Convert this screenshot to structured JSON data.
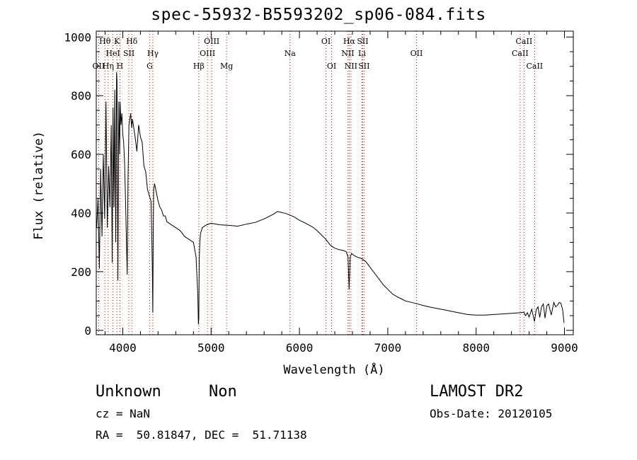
{
  "title": "spec-55932-B5593202_sp06-084.fits",
  "footer": {
    "class_label": "Unknown",
    "subclass_label": "Non",
    "cz_label": "cz = NaN",
    "coords_label": "RA =  50.81847, DEC =  51.71138",
    "survey_label": "LAMOST DR2",
    "obsdate_label": "Obs-Date: 20120105"
  },
  "chart_data": {
    "type": "line",
    "title": "spec-55932-B5593202_sp06-084.fits",
    "xlabel": "Wavelength (Å)",
    "ylabel": "Flux (relative)",
    "xlim": [
      3700,
      9100
    ],
    "ylim": [
      -15,
      1020
    ],
    "xticks": [
      4000,
      5000,
      6000,
      7000,
      8000,
      9000
    ],
    "yticks": [
      0,
      200,
      400,
      600,
      800,
      1000
    ],
    "grid": false,
    "line_color": "#000000",
    "marker_color": "#cc0000",
    "series": [
      {
        "x": [
          3705,
          3720,
          3735,
          3750,
          3765,
          3780,
          3795,
          3810,
          3825,
          3840,
          3855,
          3870,
          3880,
          3890,
          3900,
          3910,
          3920,
          3930,
          3935,
          3945,
          3955,
          3965,
          3970,
          3980,
          3990,
          4000,
          4010,
          4020,
          4030,
          4040,
          4050,
          4060,
          4070,
          4080,
          4090,
          4101,
          4110,
          4120,
          4140,
          4160,
          4180,
          4200,
          4220,
          4240,
          4260,
          4280,
          4300,
          4320,
          4330,
          4335,
          4340,
          4345,
          4350,
          4360,
          4380,
          4400,
          4420,
          4440,
          4460,
          4480,
          4500,
          4550,
          4600,
          4650,
          4700,
          4750,
          4800,
          4830,
          4850,
          4856,
          4861,
          4866,
          4872,
          4880,
          4900,
          4950,
          5000,
          5100,
          5200,
          5300,
          5400,
          5500,
          5600,
          5700,
          5750,
          5800,
          5850,
          5900,
          5950,
          6000,
          6050,
          6100,
          6150,
          6200,
          6250,
          6300,
          6350,
          6400,
          6450,
          6500,
          6530,
          6550,
          6563,
          6575,
          6590,
          6620,
          6650,
          6700,
          6750,
          6800,
          6850,
          6900,
          6950,
          7000,
          7050,
          7100,
          7150,
          7200,
          7300,
          7400,
          7500,
          7600,
          7700,
          7800,
          7900,
          8000,
          8100,
          8200,
          8300,
          8400,
          8500,
          8540,
          8560,
          8580,
          8600,
          8630,
          8660,
          8680,
          8700,
          8720,
          8740,
          8760,
          8780,
          8800,
          8820,
          8850,
          8880,
          8900,
          8920,
          8940,
          8960,
          8980,
          8995
        ],
        "y": [
          350,
          450,
          210,
          550,
          320,
          600,
          380,
          780,
          350,
          560,
          420,
          700,
          230,
          760,
          420,
          820,
          300,
          880,
          850,
          170,
          780,
          600,
          780,
          700,
          740,
          670,
          640,
          580,
          460,
          330,
          190,
          520,
          700,
          720,
          740,
          690,
          720,
          700,
          660,
          610,
          700,
          660,
          640,
          560,
          540,
          480,
          460,
          440,
          300,
          200,
          60,
          320,
          480,
          500,
          470,
          440,
          420,
          410,
          390,
          390,
          370,
          360,
          350,
          340,
          320,
          310,
          300,
          250,
          120,
          20,
          40,
          240,
          300,
          330,
          350,
          360,
          365,
          360,
          358,
          355,
          362,
          368,
          380,
          395,
          405,
          402,
          398,
          392,
          385,
          375,
          368,
          360,
          352,
          340,
          325,
          310,
          290,
          280,
          275,
          272,
          268,
          250,
          140,
          250,
          262,
          255,
          250,
          245,
          235,
          215,
          195,
          175,
          155,
          140,
          125,
          115,
          108,
          100,
          93,
          85,
          78,
          72,
          66,
          60,
          54,
          52,
          52,
          54,
          56,
          58,
          60,
          62,
          50,
          60,
          45,
          72,
          30,
          70,
          80,
          44,
          80,
          90,
          42,
          84,
          90,
          52,
          95,
          80,
          85,
          95,
          92,
          70,
          25
        ]
      }
    ],
    "line_markers": [
      {
        "label": "Hθ",
        "x": 3798,
        "row": 1
      },
      {
        "label": "K",
        "x": 3934,
        "row": 1
      },
      {
        "label": "Hδ",
        "x": 4102,
        "row": 1
      },
      {
        "label": "OIII",
        "x": 5007,
        "row": 1
      },
      {
        "label": "OI",
        "x": 6300,
        "row": 1
      },
      {
        "label": "Hα",
        "x": 6563,
        "row": 1
      },
      {
        "label": "SII",
        "x": 6716,
        "row": 1
      },
      {
        "label": "CaII",
        "x": 8542,
        "row": 1
      },
      {
        "label": "HeI",
        "x": 3889,
        "row": 2
      },
      {
        "label": "SII",
        "x": 4069,
        "row": 2
      },
      {
        "label": "Hγ",
        "x": 4341,
        "row": 2
      },
      {
        "label": "OIII",
        "x": 4959,
        "row": 2
      },
      {
        "label": "Na",
        "x": 5893,
        "row": 2
      },
      {
        "label": "NII",
        "x": 6548,
        "row": 2
      },
      {
        "label": "Li",
        "x": 6708,
        "row": 2
      },
      {
        "label": "OII",
        "x": 7325,
        "row": 2
      },
      {
        "label": "CaII",
        "x": 8498,
        "row": 2
      },
      {
        "label": "OII",
        "x": 3727,
        "row": 3
      },
      {
        "label": "Hη",
        "x": 3835,
        "row": 3
      },
      {
        "label": "H",
        "x": 3968,
        "row": 3
      },
      {
        "label": "G",
        "x": 4305,
        "row": 3
      },
      {
        "label": "Hβ",
        "x": 4861,
        "row": 3
      },
      {
        "label": "Mg",
        "x": 5175,
        "row": 3
      },
      {
        "label": "OI",
        "x": 6364,
        "row": 3
      },
      {
        "label": "NII",
        "x": 6583,
        "row": 3
      },
      {
        "label": "SII",
        "x": 6731,
        "row": 3
      },
      {
        "label": "CaII",
        "x": 8662,
        "row": 3
      }
    ]
  }
}
